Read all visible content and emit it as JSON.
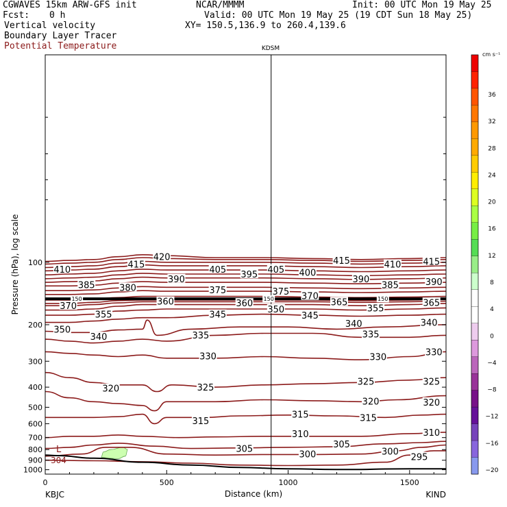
{
  "header": {
    "model": "CGWAVES 15km ARW-GFS init",
    "fcst_label": "Fcst:",
    "fcst_value": "0 h",
    "org": "NCAR/MMMM",
    "init": "Init: 00 UTC Mon 19 May 25",
    "valid": "Valid: 00 UTC Mon 19 May 25 (19 CDT Sun 18 May 25)",
    "xy": "XY= 150.5,136.9 to 260.4,139.6",
    "field1": "Vertical velocity",
    "field2": "Boundary Layer Tracer",
    "field3": "Potential Temperature"
  },
  "colorbar": {
    "unit": "cm s⁻¹",
    "labels": [
      "36",
      "32",
      "28",
      "24",
      "20",
      "16",
      "12",
      "8",
      "4",
      "0",
      "−4",
      "−8",
      "−12",
      "−16",
      "−20"
    ],
    "colors": [
      "#ee0000",
      "#ff2200",
      "#ff5500",
      "#ff7700",
      "#ff9900",
      "#ffaa00",
      "#ffcc00",
      "#ffee00",
      "#ddff22",
      "#aaff44",
      "#77ee44",
      "#55dd55",
      "#99ee88",
      "#ccffcc",
      "#ffffff",
      "#ffffff",
      "#eeccee",
      "#dd99dd",
      "#bb66bb",
      "#993399",
      "#771188",
      "#661199",
      "#7744bb",
      "#8866dd",
      "#8899ee"
    ]
  },
  "chart_data": {
    "type": "contour",
    "title": "KDSM",
    "xlabel": "Distance (km)",
    "ylabel": "Pressure (hPa), log scale",
    "xlim": [
      0,
      1650
    ],
    "ylim": [
      1050,
      10
    ],
    "x_ticks": [
      "0",
      "500",
      "1000",
      "1500"
    ],
    "y_ticks": [
      "100",
      "200",
      "300",
      "400",
      "500",
      "600",
      "700",
      "800",
      "900",
      "1000"
    ],
    "left_station": "KBJC",
    "right_station": "KIND",
    "station_marker_km": 930,
    "terrain_label": "L",
    "terrain_value": "304",
    "tracer_label": "150",
    "series": [
      {
        "name": "295",
        "x": [
          0,
          200,
          400,
          600,
          800,
          1000,
          1200,
          1400,
          1500,
          1600,
          1650
        ],
        "p": [
          900,
          905,
          915,
          930,
          950,
          955,
          950,
          920,
          850,
          810,
          810
        ]
      },
      {
        "name": "300",
        "x": [
          0,
          150,
          250,
          350,
          500,
          700,
          900,
          1100,
          1300,
          1450,
          1550,
          1650
        ],
        "p": [
          860,
          840,
          780,
          780,
          840,
          850,
          845,
          845,
          840,
          810,
          780,
          760
        ]
      },
      {
        "name": "305",
        "x": [
          0,
          100,
          200,
          300,
          450,
          600,
          800,
          1000,
          1200,
          1400,
          1550,
          1650
        ],
        "p": [
          790,
          780,
          760,
          745,
          770,
          790,
          785,
          780,
          775,
          750,
          740,
          730
        ]
      },
      {
        "name": "310",
        "x": [
          0,
          100,
          200,
          300,
          400,
          550,
          700,
          900,
          1100,
          1300,
          1500,
          1650
        ],
        "p": [
          700,
          690,
          690,
          680,
          690,
          700,
          695,
          690,
          690,
          690,
          670,
          660
        ]
      },
      {
        "name": "315",
        "x": [
          0,
          100,
          200,
          300,
          400,
          450,
          500,
          650,
          800,
          1000,
          1200,
          1400,
          1550,
          1650
        ],
        "p": [
          560,
          560,
          560,
          555,
          540,
          600,
          560,
          560,
          550,
          545,
          550,
          560,
          545,
          540
        ]
      },
      {
        "name": "320",
        "x": [
          0,
          100,
          200,
          300,
          400,
          450,
          500,
          700,
          900,
          1100,
          1300,
          1450,
          1650
        ],
        "p": [
          420,
          450,
          470,
          480,
          490,
          520,
          470,
          470,
          460,
          465,
          470,
          460,
          440
        ]
      },
      {
        "name": "325",
        "x": [
          0,
          100,
          200,
          300,
          400,
          460,
          520,
          700,
          900,
          1100,
          1300,
          1500,
          1650
        ],
        "p": [
          340,
          360,
          380,
          390,
          390,
          420,
          390,
          400,
          390,
          385,
          380,
          370,
          360
        ]
      },
      {
        "name": "330",
        "x": [
          0,
          100,
          200,
          300,
          400,
          500,
          700,
          900,
          1100,
          1300,
          1500,
          1650
        ],
        "p": [
          270,
          275,
          280,
          285,
          280,
          290,
          290,
          285,
          290,
          295,
          285,
          270
        ]
      },
      {
        "name": "335",
        "x": [
          0,
          100,
          200,
          300,
          400,
          500,
          700,
          900,
          1100,
          1300,
          1500,
          1650
        ],
        "p": [
          235,
          240,
          245,
          240,
          235,
          240,
          225,
          220,
          220,
          230,
          230,
          225
        ]
      },
      {
        "name": "340",
        "x": [
          0,
          100,
          200,
          300,
          400,
          420,
          460,
          600,
          800,
          1000,
          1200,
          1400,
          1650
        ],
        "p": [
          215,
          218,
          218,
          212,
          210,
          190,
          225,
          210,
          205,
          205,
          210,
          205,
          200
        ]
      },
      {
        "name": "345",
        "x": [
          0,
          100,
          200,
          300,
          400,
          500,
          700,
          900,
          1100,
          1300,
          1500,
          1650
        ],
        "p": [
          195,
          195,
          192,
          188,
          185,
          185,
          180,
          178,
          180,
          182,
          180,
          178
        ]
      },
      {
        "name": "350",
        "x": [
          0,
          100,
          200,
          300,
          400,
          500,
          700,
          900,
          1100,
          1300,
          1500,
          1650
        ],
        "p": [
          180,
          180,
          178,
          172,
          170,
          168,
          168,
          168,
          168,
          170,
          168,
          166
        ]
      },
      {
        "name": "355",
        "x": [
          0,
          100,
          200,
          300,
          400,
          500,
          700,
          900,
          1100,
          1300,
          1500,
          1650
        ],
        "p": [
          170,
          170,
          168,
          163,
          160,
          160,
          160,
          160,
          160,
          162,
          160,
          158
        ]
      },
      {
        "name": "360",
        "x": [
          0,
          100,
          200,
          300,
          400,
          500,
          700,
          900,
          1100,
          1300,
          1500,
          1650
        ],
        "p": [
          162,
          162,
          160,
          157,
          155,
          155,
          155,
          155,
          155,
          156,
          155,
          154
        ]
      },
      {
        "name": "365",
        "x": [
          0,
          100,
          200,
          300,
          400,
          500,
          700,
          900,
          1100,
          1300,
          1500,
          1650
        ],
        "p": [
          158,
          158,
          156,
          153,
          152,
          152,
          152,
          152,
          152,
          153,
          152,
          151
        ]
      },
      {
        "name": "370",
        "x": [
          0,
          100,
          200,
          300,
          400,
          500,
          700,
          900,
          1100,
          1300,
          1500,
          1650
        ],
        "p": [
          152,
          152,
          150,
          148,
          146,
          146,
          146,
          146,
          147,
          148,
          147,
          146
        ]
      },
      {
        "name": "375",
        "x": [
          0,
          100,
          200,
          300,
          400,
          500,
          700,
          900,
          1100,
          1300,
          1500,
          1650
        ],
        "p": [
          143,
          143,
          142,
          139,
          137,
          138,
          138,
          138,
          139,
          140,
          139,
          138
        ]
      },
      {
        "name": "380",
        "x": [
          0,
          100,
          200,
          300,
          400,
          500,
          700,
          900,
          1100,
          1300,
          1500,
          1650
        ],
        "p": [
          137,
          137,
          136,
          133,
          131,
          132,
          132,
          132,
          133,
          134,
          133,
          132
        ]
      },
      {
        "name": "385",
        "x": [
          0,
          100,
          200,
          300,
          400,
          500,
          700,
          900,
          1100,
          1300,
          1500,
          1650
        ],
        "p": [
          130,
          130,
          129,
          126,
          124,
          125,
          125,
          125,
          126,
          127,
          126,
          125
        ]
      },
      {
        "name": "390",
        "x": [
          0,
          100,
          200,
          300,
          400,
          500,
          700,
          900,
          1100,
          1300,
          1500,
          1650
        ],
        "p": [
          125,
          124,
          123,
          120,
          118,
          119,
          119,
          119,
          120,
          121,
          120,
          119
        ]
      },
      {
        "name": "395",
        "x": [
          0,
          100,
          200,
          300,
          400,
          500,
          700,
          900,
          1100,
          1300,
          1500,
          1650
        ],
        "p": [
          120,
          119,
          118,
          115,
          113,
          114,
          114,
          114,
          115,
          116,
          115,
          114
        ]
      },
      {
        "name": "400",
        "x": [
          0,
          100,
          200,
          300,
          400,
          500,
          700,
          900,
          1100,
          1300,
          1500,
          1650
        ],
        "p": [
          115,
          114,
          113,
          110,
          108,
          109,
          109,
          109,
          110,
          111,
          110,
          109
        ]
      },
      {
        "name": "405",
        "x": [
          0,
          100,
          200,
          300,
          400,
          500,
          700,
          900,
          1100,
          1300,
          1500,
          1650
        ],
        "p": [
          110,
          109,
          108,
          105,
          103,
          104,
          104,
          104,
          105,
          106,
          105,
          104
        ]
      },
      {
        "name": "410",
        "x": [
          0,
          100,
          200,
          300,
          400,
          500,
          700,
          900,
          1100,
          1300,
          1500,
          1650
        ],
        "p": [
          106,
          105,
          104,
          101,
          99,
          100,
          100,
          100,
          101,
          102,
          101,
          100
        ]
      },
      {
        "name": "415",
        "x": [
          0,
          100,
          200,
          300,
          400,
          500,
          700,
          900,
          1100,
          1300,
          1500,
          1650
        ],
        "p": [
          102,
          101,
          100,
          97,
          95,
          96,
          97,
          97,
          98,
          99,
          98,
          97
        ]
      },
      {
        "name": "420",
        "x": [
          0,
          100,
          200,
          300,
          400,
          500,
          700,
          900,
          1100,
          1300,
          1500,
          1650
        ],
        "p": [
          99,
          98,
          97,
          94,
          92,
          93,
          95,
          95,
          96,
          97,
          96,
          95
        ]
      }
    ],
    "contour_labels": [
      {
        "text": "420",
        "x": 480,
        "p": 94
      },
      {
        "text": "415",
        "x": 375,
        "p": 102
      },
      {
        "text": "415",
        "x": 1220,
        "p": 98
      },
      {
        "text": "415",
        "x": 1590,
        "p": 99
      },
      {
        "text": "410",
        "x": 70,
        "p": 108
      },
      {
        "text": "410",
        "x": 1430,
        "p": 102
      },
      {
        "text": "405",
        "x": 710,
        "p": 108
      },
      {
        "text": "405",
        "x": 950,
        "p": 108
      },
      {
        "text": "400",
        "x": 1080,
        "p": 112
      },
      {
        "text": "395",
        "x": 840,
        "p": 114
      },
      {
        "text": "390",
        "x": 540,
        "p": 120
      },
      {
        "text": "390",
        "x": 1300,
        "p": 120
      },
      {
        "text": "390",
        "x": 1600,
        "p": 124
      },
      {
        "text": "385",
        "x": 170,
        "p": 128
      },
      {
        "text": "385",
        "x": 1420,
        "p": 128
      },
      {
        "text": "380",
        "x": 340,
        "p": 132
      },
      {
        "text": "375",
        "x": 710,
        "p": 136
      },
      {
        "text": "375",
        "x": 970,
        "p": 138
      },
      {
        "text": "370",
        "x": 95,
        "p": 162
      },
      {
        "text": "370",
        "x": 1090,
        "p": 145
      },
      {
        "text": "365",
        "x": 1210,
        "p": 155
      },
      {
        "text": "365",
        "x": 1590,
        "p": 156
      },
      {
        "text": "360",
        "x": 495,
        "p": 154
      },
      {
        "text": "360",
        "x": 820,
        "p": 157
      },
      {
        "text": "355",
        "x": 240,
        "p": 178
      },
      {
        "text": "355",
        "x": 1360,
        "p": 166
      },
      {
        "text": "350",
        "x": 70,
        "p": 210
      },
      {
        "text": "350",
        "x": 950,
        "p": 168
      },
      {
        "text": "345",
        "x": 710,
        "p": 178
      },
      {
        "text": "345",
        "x": 1090,
        "p": 180
      },
      {
        "text": "340",
        "x": 220,
        "p": 228
      },
      {
        "text": "340",
        "x": 1270,
        "p": 197
      },
      {
        "text": "340",
        "x": 1580,
        "p": 195
      },
      {
        "text": "335",
        "x": 640,
        "p": 224
      },
      {
        "text": "335",
        "x": 1340,
        "p": 222
      },
      {
        "text": "330",
        "x": 670,
        "p": 283
      },
      {
        "text": "330",
        "x": 1370,
        "p": 285
      },
      {
        "text": "330",
        "x": 1600,
        "p": 270
      },
      {
        "text": "325",
        "x": 660,
        "p": 400
      },
      {
        "text": "325",
        "x": 1320,
        "p": 375
      },
      {
        "text": "325",
        "x": 1590,
        "p": 375
      },
      {
        "text": "320",
        "x": 270,
        "p": 405
      },
      {
        "text": "320",
        "x": 1340,
        "p": 467
      },
      {
        "text": "320",
        "x": 1590,
        "p": 472
      },
      {
        "text": "315",
        "x": 640,
        "p": 580
      },
      {
        "text": "315",
        "x": 1050,
        "p": 540
      },
      {
        "text": "315",
        "x": 1330,
        "p": 560
      },
      {
        "text": "310",
        "x": 1050,
        "p": 670
      },
      {
        "text": "310",
        "x": 1590,
        "p": 660
      },
      {
        "text": "305",
        "x": 820,
        "p": 790
      },
      {
        "text": "305",
        "x": 1220,
        "p": 752
      },
      {
        "text": "300",
        "x": 1080,
        "p": 840
      },
      {
        "text": "300",
        "x": 1420,
        "p": 815
      },
      {
        "text": "295",
        "x": 1540,
        "p": 865
      }
    ],
    "terrain": {
      "x": [
        0,
        50,
        200,
        400,
        600,
        800,
        1000,
        1200,
        1300,
        1400,
        1500,
        1600,
        1650
      ],
      "p": [
        850,
        855,
        880,
        920,
        950,
        975,
        990,
        998,
        998,
        992,
        990,
        990,
        990
      ]
    },
    "tracer_patch": {
      "x": [
        230,
        240,
        270,
        320,
        340,
        330,
        300,
        260,
        230
      ],
      "p": [
        870,
        820,
        800,
        780,
        800,
        860,
        885,
        880,
        870
      ]
    }
  }
}
